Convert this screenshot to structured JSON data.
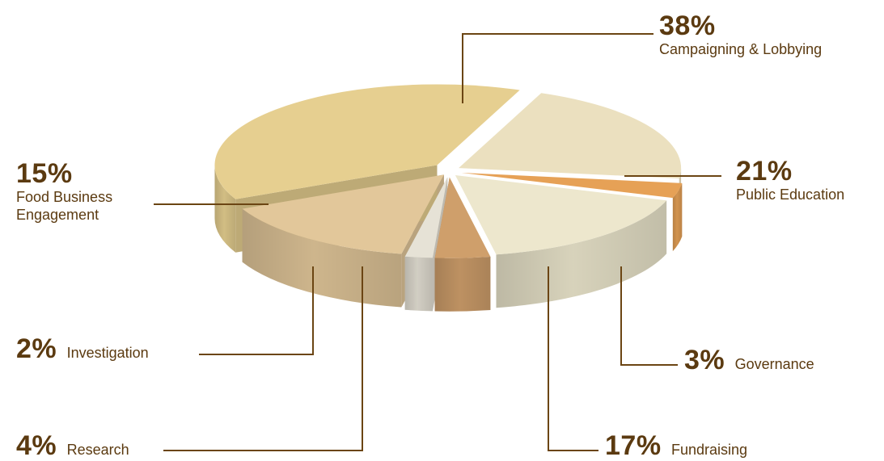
{
  "chart_data": {
    "type": "pie",
    "title": "",
    "slices": [
      {
        "label": "Campaigning & Lobbying",
        "value": 38,
        "value_text": "38%",
        "color": "#e6cf90"
      },
      {
        "label": "Public Education",
        "value": 21,
        "value_text": "21%",
        "color": "#ebe0bf"
      },
      {
        "label": "Governance",
        "value": 3,
        "value_text": "3%",
        "color": "#e6a156"
      },
      {
        "label": "Fundraising",
        "value": 17,
        "value_text": "17%",
        "color": "#ede7cd"
      },
      {
        "label": "Research",
        "value": 4,
        "value_text": "4%",
        "color": "#cf9f6b"
      },
      {
        "label": "Investigation",
        "value": 2,
        "value_text": "2%",
        "color": "#e6e2d6"
      },
      {
        "label": "Food Business Engagement",
        "value": 15,
        "value_text": "15%",
        "color": "#e2c79a"
      }
    ],
    "label_lines": {
      "Food Business Engagement": [
        "Food Business",
        "Engagement"
      ]
    },
    "style": "3d-exploded",
    "leader_color": "#6b4513",
    "text_color": "#5b3a10"
  }
}
